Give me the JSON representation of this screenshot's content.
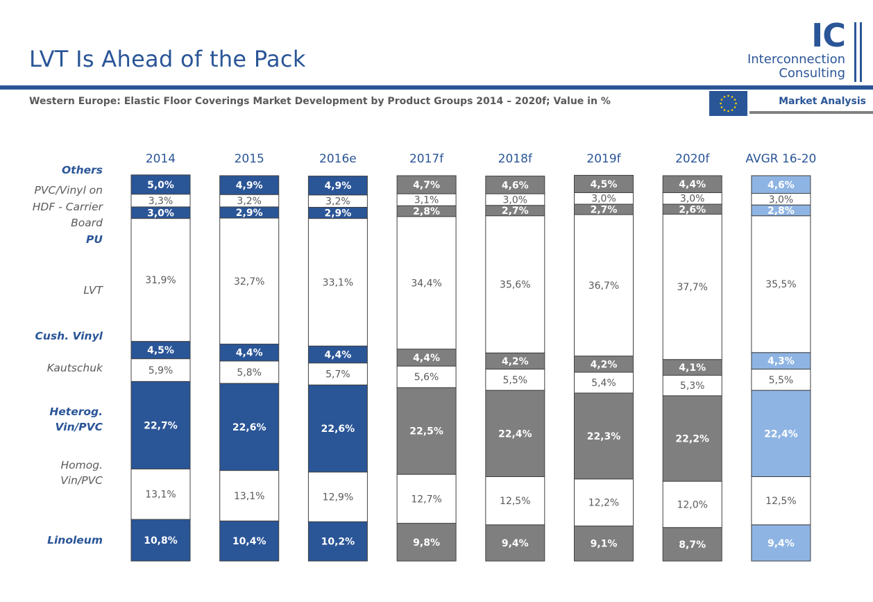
{
  "page": {
    "title": "LVT Is Ahead of the Pack",
    "subtitle": "Western Europe: Elastic Floor Coverings Market Development by Product Groups  2014 – 2020f; Value in %",
    "logo": {
      "mark": "IC",
      "line1": "Interconnection",
      "line2": "Consulting"
    },
    "flag_icon": "eu-flag-icon",
    "section_label": "Market Analysis"
  },
  "colors": {
    "brand_blue": "#2a5597",
    "forecast_gray": "#7f7f7f",
    "avg_light_blue": "#8eb4e3",
    "text_gray": "#595959",
    "border": "#404040"
  },
  "chart_data": {
    "type": "bar",
    "stacked": true,
    "percent_stacked": true,
    "categories": [
      "2014",
      "2015",
      "2016e",
      "2017f",
      "2018f",
      "2019f",
      "2020f",
      "AVGR 16-20"
    ],
    "series": [
      {
        "name": "Linoleum",
        "values": [
          10.8,
          10.4,
          10.2,
          9.8,
          9.4,
          9.1,
          8.7,
          9.4
        ],
        "labels": [
          "10,8%",
          "10,4%",
          "10,2%",
          "9,8%",
          "9,4%",
          "9,1%",
          "8,7%",
          "9,4%"
        ],
        "filled": true
      },
      {
        "name": "Homog. Vin/PVC",
        "values": [
          13.1,
          13.1,
          12.9,
          12.7,
          12.5,
          12.2,
          12.0,
          12.5
        ],
        "labels": [
          "13,1%",
          "13,1%",
          "12,9%",
          "12,7%",
          "12,5%",
          "12,2%",
          "12,0%",
          "12,5%"
        ],
        "filled": false
      },
      {
        "name": "Heterog. Vin/PVC",
        "values": [
          22.7,
          22.6,
          22.6,
          22.5,
          22.4,
          22.3,
          22.2,
          22.4
        ],
        "labels": [
          "22,7%",
          "22,6%",
          "22,6%",
          "22,5%",
          "22,4%",
          "22,3%",
          "22,2%",
          "22,4%"
        ],
        "filled": true
      },
      {
        "name": "Kautschuk",
        "values": [
          5.9,
          5.8,
          5.7,
          5.6,
          5.5,
          5.4,
          5.3,
          5.5
        ],
        "labels": [
          "5,9%",
          "5,8%",
          "5,7%",
          "5,6%",
          "5,5%",
          "5,4%",
          "5,3%",
          "5,5%"
        ],
        "filled": false
      },
      {
        "name": "Cush. Vinyl",
        "values": [
          4.5,
          4.4,
          4.4,
          4.4,
          4.2,
          4.2,
          4.1,
          4.3
        ],
        "labels": [
          "4,5%",
          "4,4%",
          "4,4%",
          "4,4%",
          "4,2%",
          "4,2%",
          "4,1%",
          "4,3%"
        ],
        "filled": true
      },
      {
        "name": "LVT",
        "values": [
          31.9,
          32.7,
          33.1,
          34.4,
          35.6,
          36.7,
          37.7,
          35.5
        ],
        "labels": [
          "31,9%",
          "32,7%",
          "33,1%",
          "34,4%",
          "35,6%",
          "36,7%",
          "37,7%",
          "35,5%"
        ],
        "filled": false
      },
      {
        "name": "PU",
        "values": [
          3.0,
          2.9,
          2.9,
          2.8,
          2.7,
          2.7,
          2.6,
          2.8
        ],
        "labels": [
          "3,0%",
          "2,9%",
          "2,9%",
          "2,8%",
          "2,7%",
          "2,7%",
          "2,6%",
          "2,8%"
        ],
        "filled": true
      },
      {
        "name": "PVC/Vinyl on HDF - Carrier Board",
        "values": [
          3.3,
          3.2,
          3.2,
          3.1,
          3.0,
          3.0,
          3.0,
          3.0
        ],
        "labels": [
          "3,3%",
          "3,2%",
          "3,2%",
          "3,1%",
          "3,0%",
          "3,0%",
          "3,0%",
          "3,0%"
        ],
        "filled": false
      },
      {
        "name": "Others",
        "values": [
          5.0,
          4.9,
          4.9,
          4.7,
          4.6,
          4.5,
          4.4,
          4.6
        ],
        "labels": [
          "5,0%",
          "4,9%",
          "4,9%",
          "4,7%",
          "4,6%",
          "4,5%",
          "4,4%",
          "4,6%"
        ],
        "filled": true
      }
    ],
    "column_styles": [
      "actual",
      "actual",
      "actual",
      "forecast",
      "forecast",
      "forecast",
      "forecast",
      "average"
    ],
    "row_labels": [
      {
        "text": "Others",
        "color": "blue",
        "lines": [
          "Others"
        ]
      },
      {
        "text": "PVC/Vinyl on HDF - Carrier Board",
        "color": "gray",
        "lines": [
          "PVC/Vinyl on",
          "HDF - Carrier",
          "Board"
        ]
      },
      {
        "text": "PU",
        "color": "blue",
        "lines": [
          "PU"
        ]
      },
      {
        "text": "LVT",
        "color": "gray",
        "lines": [
          "LVT"
        ]
      },
      {
        "text": "Cush. Vinyl",
        "color": "blue",
        "lines": [
          "Cush. Vinyl"
        ]
      },
      {
        "text": "Kautschuk",
        "color": "gray",
        "lines": [
          "Kautschuk"
        ]
      },
      {
        "text": "Heterog. Vin/PVC",
        "color": "blue",
        "lines": [
          "Heterog.",
          "Vin/PVC"
        ]
      },
      {
        "text": "Homog. Vin/PVC",
        "color": "gray",
        "lines": [
          "Homog.",
          "Vin/PVC"
        ]
      },
      {
        "text": "Linoleum",
        "color": "blue",
        "lines": [
          "Linoleum"
        ]
      }
    ],
    "legend_placement": "left",
    "grid": false
  }
}
